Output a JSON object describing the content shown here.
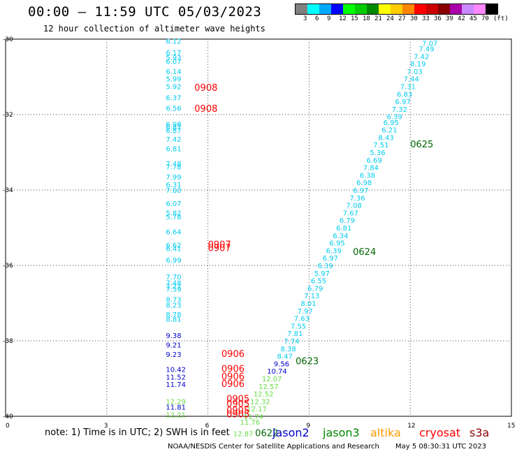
{
  "header": {
    "title": "00:00 — 11:59 UTC 05/03/2023",
    "subtitle": "12 hour collection of altimeter wave heights"
  },
  "legend": {
    "colors": [
      "#808080",
      "#00ffff",
      "#00aaff",
      "#0000ff",
      "#00ff00",
      "#00cc00",
      "#008800",
      "#ffff00",
      "#ffcc00",
      "#ff8800",
      "#ff0000",
      "#cc0000",
      "#880000",
      "#aa00aa",
      "#cc88ff",
      "#ff88ff",
      "#000000"
    ],
    "labels": [
      "3",
      "6",
      "9",
      "12",
      "15",
      "18",
      "21",
      "24",
      "27",
      "30",
      "33",
      "36",
      "39",
      "42",
      "45",
      "70",
      "(ft)"
    ]
  },
  "satellites": [
    {
      "name": "jason2",
      "color": "#0000cc"
    },
    {
      "name": "jason3",
      "color": "#008800"
    },
    {
      "name": "altika",
      "color": "#ff9900"
    },
    {
      "name": "cryosat",
      "color": "#ff0000"
    },
    {
      "name": "s3a",
      "color": "#880000"
    }
  ],
  "footer": {
    "note": "note:  1) Time is in UTC;  2) SWH is in feet",
    "credit": "NOAA/NESDIS Center for Satellite Applications and Research",
    "timestamp": "May  5 08:30:31 UTC 2023"
  },
  "axes": {
    "x_ticks": [
      "0",
      "3",
      "6",
      "9",
      "12",
      "15"
    ],
    "y_ticks": [
      "-30",
      "-32",
      "-34",
      "-36",
      "-38",
      "-40"
    ],
    "x_range": [
      0,
      15
    ],
    "y_range": [
      -40,
      -30
    ]
  },
  "colors": {
    "cyan": "#00ccee",
    "blue": "#0000cc",
    "green": "#00aa00",
    "lime": "#66dd44",
    "red": "#ff0000",
    "darkgreen": "#006600",
    "gridline": "#444444"
  },
  "map_data": {
    "track_a_cyan": [
      {
        "x": 5.0,
        "y": -30.05,
        "v": "6.12"
      },
      {
        "x": 5.0,
        "y": -30.35,
        "v": "6.17"
      },
      {
        "x": 5.0,
        "y": -30.48,
        "v": "5.93"
      },
      {
        "x": 5.0,
        "y": -30.58,
        "v": "6.07"
      },
      {
        "x": 5.0,
        "y": -30.85,
        "v": "6.14"
      },
      {
        "x": 5.0,
        "y": -31.05,
        "v": "5.99"
      },
      {
        "x": 5.0,
        "y": -31.25,
        "v": "5.92"
      },
      {
        "x": 5.0,
        "y": -31.55,
        "v": "6.37"
      },
      {
        "x": 5.0,
        "y": -31.82,
        "v": "6.56"
      },
      {
        "x": 5.0,
        "y": -32.25,
        "v": "6.98"
      },
      {
        "x": 5.0,
        "y": -32.32,
        "v": "6.87"
      },
      {
        "x": 5.0,
        "y": -32.42,
        "v": "6.87"
      },
      {
        "x": 5.0,
        "y": -32.65,
        "v": "7.42"
      },
      {
        "x": 5.0,
        "y": -32.9,
        "v": "6.81"
      },
      {
        "x": 5.0,
        "y": -33.3,
        "v": "7.48"
      },
      {
        "x": 5.0,
        "y": -33.38,
        "v": "7.78"
      },
      {
        "x": 5.0,
        "y": -33.65,
        "v": "7.99"
      },
      {
        "x": 5.0,
        "y": -33.85,
        "v": "6.31"
      },
      {
        "x": 5.0,
        "y": -34.0,
        "v": "7.60"
      },
      {
        "x": 5.0,
        "y": -34.35,
        "v": "6.07"
      },
      {
        "x": 5.0,
        "y": -34.6,
        "v": "5.82"
      },
      {
        "x": 5.0,
        "y": -34.7,
        "v": "5.78"
      },
      {
        "x": 5.0,
        "y": -35.1,
        "v": "6.64"
      },
      {
        "x": 5.0,
        "y": -35.45,
        "v": "6.62"
      },
      {
        "x": 5.0,
        "y": -35.55,
        "v": "6.41"
      },
      {
        "x": 5.0,
        "y": -35.85,
        "v": "6.99"
      },
      {
        "x": 5.0,
        "y": -36.3,
        "v": "7.70"
      },
      {
        "x": 5.0,
        "y": -36.45,
        "v": "7.48"
      },
      {
        "x": 5.0,
        "y": -36.55,
        "v": "7.27"
      },
      {
        "x": 5.0,
        "y": -36.62,
        "v": "7.59"
      },
      {
        "x": 5.0,
        "y": -36.9,
        "v": "8.73"
      },
      {
        "x": 5.0,
        "y": -37.05,
        "v": "8.23"
      },
      {
        "x": 5.0,
        "y": -37.3,
        "v": "8.78"
      },
      {
        "x": 5.0,
        "y": -37.42,
        "v": "8.81"
      }
    ],
    "track_a_blue": [
      {
        "x": 5.0,
        "y": -37.85,
        "v": "9.38"
      },
      {
        "x": 5.0,
        "y": -38.1,
        "v": "9.21"
      },
      {
        "x": 5.0,
        "y": -38.35,
        "v": "9.23"
      },
      {
        "x": 5.0,
        "y": -38.75,
        "v": "10.42"
      },
      {
        "x": 5.0,
        "y": -38.95,
        "v": "11.52"
      },
      {
        "x": 5.0,
        "y": -39.15,
        "v": "11.74"
      },
      {
        "x": 5.0,
        "y": -39.75,
        "v": "11.81"
      }
    ],
    "track_a_lime": [
      {
        "x": 5.0,
        "y": -39.6,
        "v": "12.29"
      },
      {
        "x": 5.0,
        "y": -39.95,
        "v": "12.21"
      }
    ],
    "track_a_times": [
      {
        "x": 5.6,
        "y": -31.3,
        "v": "0908"
      },
      {
        "x": 5.6,
        "y": -31.85,
        "v": "0908"
      },
      {
        "x": 6.0,
        "y": -35.45,
        "v": "0907"
      },
      {
        "x": 6.0,
        "y": -35.55,
        "v": "0907"
      },
      {
        "x": 6.4,
        "y": -38.35,
        "v": "0906"
      },
      {
        "x": 6.4,
        "y": -38.75,
        "v": "0906"
      },
      {
        "x": 6.4,
        "y": -38.95,
        "v": "0906"
      },
      {
        "x": 6.4,
        "y": -39.15,
        "v": "0906"
      },
      {
        "x": 6.55,
        "y": -39.55,
        "v": "0905"
      },
      {
        "x": 6.55,
        "y": -39.68,
        "v": "0905"
      },
      {
        "x": 6.55,
        "y": -39.85,
        "v": "0905"
      },
      {
        "x": 6.55,
        "y": -39.95,
        "v": "0905"
      }
    ],
    "track_b_cyan": [
      {
        "x": 12.6,
        "y": -30.1,
        "v": "7.07"
      },
      {
        "x": 12.5,
        "y": -30.25,
        "v": "7.49"
      },
      {
        "x": 12.35,
        "y": -30.45,
        "v": "7.42"
      },
      {
        "x": 12.25,
        "y": -30.65,
        "v": "8.19"
      },
      {
        "x": 12.15,
        "y": -30.85,
        "v": "7.03"
      },
      {
        "x": 12.05,
        "y": -31.05,
        "v": "7.44"
      },
      {
        "x": 11.95,
        "y": -31.25,
        "v": "7.31"
      },
      {
        "x": 11.85,
        "y": -31.45,
        "v": "6.83"
      },
      {
        "x": 11.8,
        "y": -31.65,
        "v": "6.97"
      },
      {
        "x": 11.7,
        "y": -31.85,
        "v": "7.32"
      },
      {
        "x": 11.55,
        "y": -32.05,
        "v": "6.39"
      },
      {
        "x": 11.45,
        "y": -32.2,
        "v": "6.95"
      },
      {
        "x": 11.4,
        "y": -32.4,
        "v": "6.21"
      },
      {
        "x": 11.3,
        "y": -32.6,
        "v": "8.43"
      },
      {
        "x": 11.15,
        "y": -32.8,
        "v": "7.51"
      },
      {
        "x": 11.05,
        "y": -33.0,
        "v": "5.36"
      },
      {
        "x": 10.95,
        "y": -33.2,
        "v": "6.69"
      },
      {
        "x": 10.85,
        "y": -33.4,
        "v": "7.84"
      },
      {
        "x": 10.75,
        "y": -33.6,
        "v": "6.38"
      },
      {
        "x": 10.65,
        "y": -33.8,
        "v": "6.98"
      },
      {
        "x": 10.55,
        "y": -34.0,
        "v": "6.97"
      },
      {
        "x": 10.45,
        "y": -34.2,
        "v": "7.36"
      },
      {
        "x": 10.35,
        "y": -34.4,
        "v": "7.08"
      },
      {
        "x": 10.25,
        "y": -34.6,
        "v": "7.67"
      },
      {
        "x": 10.15,
        "y": -34.8,
        "v": "6.79"
      },
      {
        "x": 10.05,
        "y": -35.0,
        "v": "6.81"
      },
      {
        "x": 9.95,
        "y": -35.2,
        "v": "6.34"
      },
      {
        "x": 9.85,
        "y": -35.4,
        "v": "6.95"
      },
      {
        "x": 9.75,
        "y": -35.6,
        "v": "6.39"
      },
      {
        "x": 9.65,
        "y": -35.8,
        "v": "6.97"
      },
      {
        "x": 9.5,
        "y": -36.0,
        "v": "6.39"
      },
      {
        "x": 9.4,
        "y": -36.2,
        "v": "5.97"
      },
      {
        "x": 9.3,
        "y": -36.4,
        "v": "6.55"
      },
      {
        "x": 9.2,
        "y": -36.6,
        "v": "6.79"
      },
      {
        "x": 9.1,
        "y": -36.8,
        "v": "7.13"
      },
      {
        "x": 9.0,
        "y": -37.0,
        "v": "8.01"
      },
      {
        "x": 8.9,
        "y": -37.2,
        "v": "7.97"
      },
      {
        "x": 8.8,
        "y": -37.4,
        "v": "7.63"
      },
      {
        "x": 8.7,
        "y": -37.6,
        "v": "7.55"
      },
      {
        "x": 8.6,
        "y": -37.8,
        "v": "7.81"
      },
      {
        "x": 8.5,
        "y": -38.0,
        "v": "7.74"
      },
      {
        "x": 8.4,
        "y": -38.2,
        "v": "8.38"
      },
      {
        "x": 8.3,
        "y": -38.4,
        "v": "8.47"
      }
    ],
    "track_b_blue": [
      {
        "x": 8.2,
        "y": -38.6,
        "v": "9.56"
      },
      {
        "x": 8.0,
        "y": -38.8,
        "v": "10.74"
      }
    ],
    "track_b_lime": [
      {
        "x": 7.85,
        "y": -39.0,
        "v": "12.07"
      },
      {
        "x": 7.75,
        "y": -39.2,
        "v": "12.57"
      },
      {
        "x": 7.6,
        "y": -39.4,
        "v": "12.52"
      },
      {
        "x": 7.5,
        "y": -39.6,
        "v": "12.32"
      },
      {
        "x": 7.4,
        "y": -39.8,
        "v": "12.17"
      },
      {
        "x": 7.3,
        "y": -40.0,
        "v": "11.74"
      },
      {
        "x": 7.2,
        "y": -40.15,
        "v": "11.76"
      },
      {
        "x": 7.0,
        "y": -40.45,
        "v": "12.87"
      }
    ],
    "track_b_times": [
      {
        "x": 12.0,
        "y": -32.8,
        "v": "0625"
      },
      {
        "x": 10.3,
        "y": -35.65,
        "v": "0624"
      },
      {
        "x": 8.6,
        "y": -38.55,
        "v": "0623"
      },
      {
        "x": 7.4,
        "y": -40.45,
        "v": "0622"
      }
    ]
  }
}
